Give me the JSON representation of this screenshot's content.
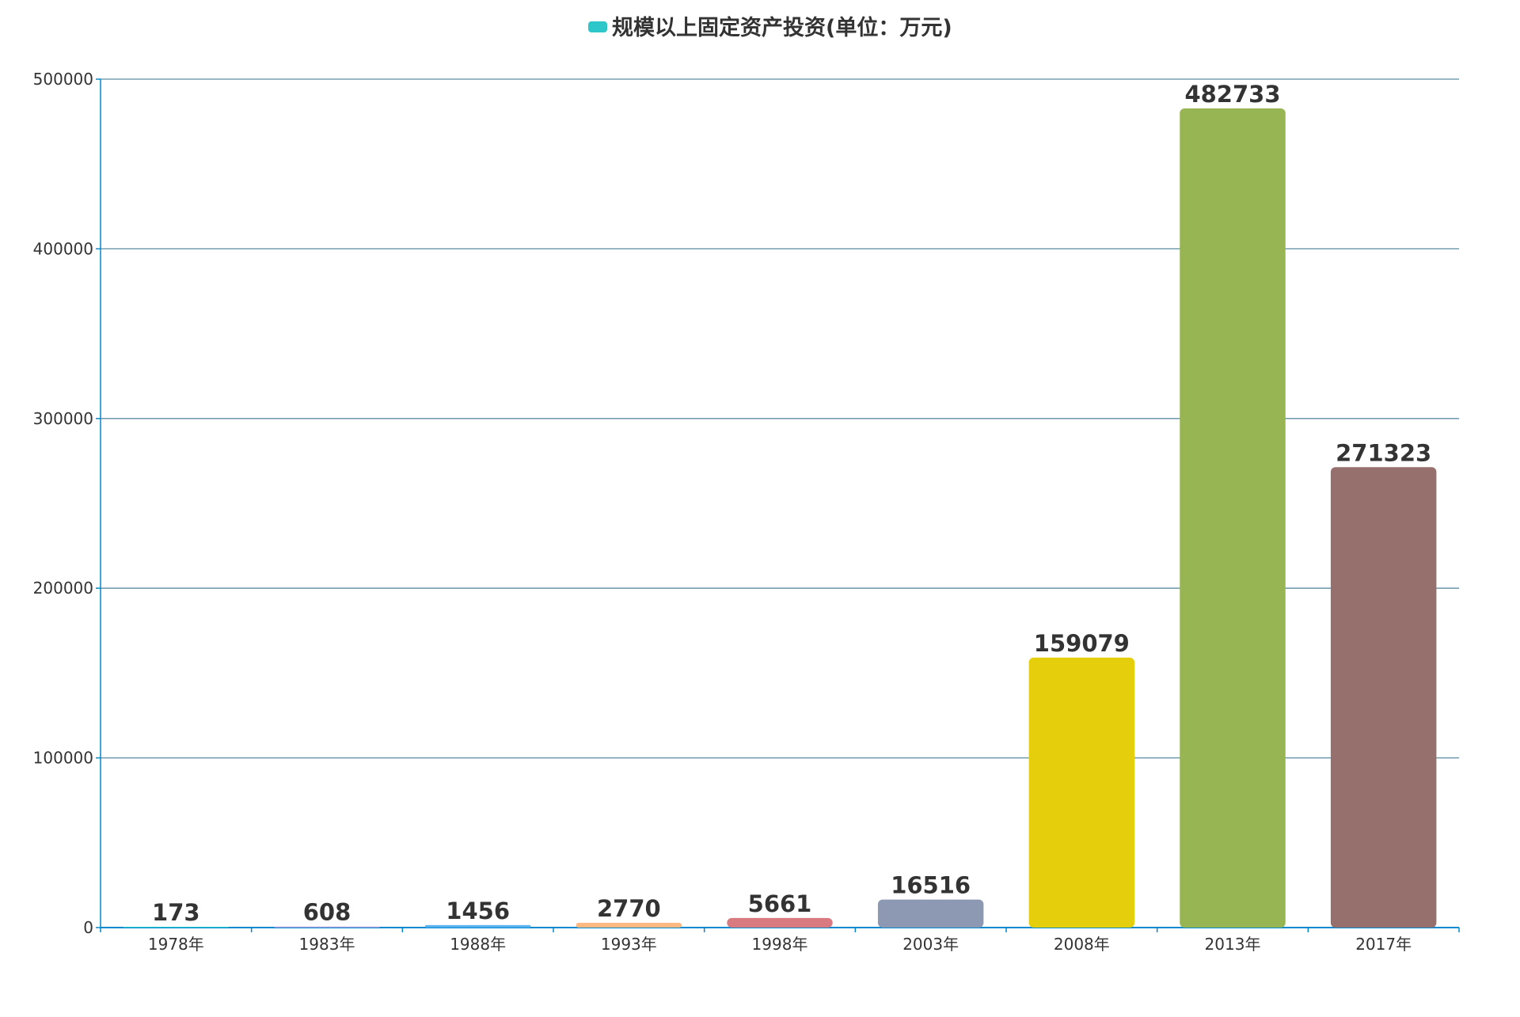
{
  "chart_data": {
    "type": "bar",
    "title": "",
    "xlabel": "",
    "ylabel": "",
    "legend": {
      "position": "top-center",
      "color": "#2ec7c9"
    },
    "categories": [
      "1978年",
      "1983年",
      "1988年",
      "1993年",
      "1998年",
      "2003年",
      "2008年",
      "2013年",
      "2017年"
    ],
    "series": [
      {
        "name": "规模以上固定资产投资(单位：万元)",
        "values": [
          173,
          608,
          1456,
          2770,
          5661,
          16516,
          159079,
          482733,
          271323
        ],
        "colors": [
          "#2ec7c9",
          "#b6a2de",
          "#5ab1ef",
          "#ffb980",
          "#d87a80",
          "#8d98b3",
          "#e5cf0d",
          "#97b552",
          "#95706d"
        ]
      }
    ],
    "ylim": [
      0,
      500000
    ],
    "yticks": [
      0,
      100000,
      200000,
      300000,
      400000,
      500000
    ],
    "grid": true,
    "data_labels": true,
    "axis_color": "#008acd",
    "grid_color": "#5b8ea3"
  }
}
